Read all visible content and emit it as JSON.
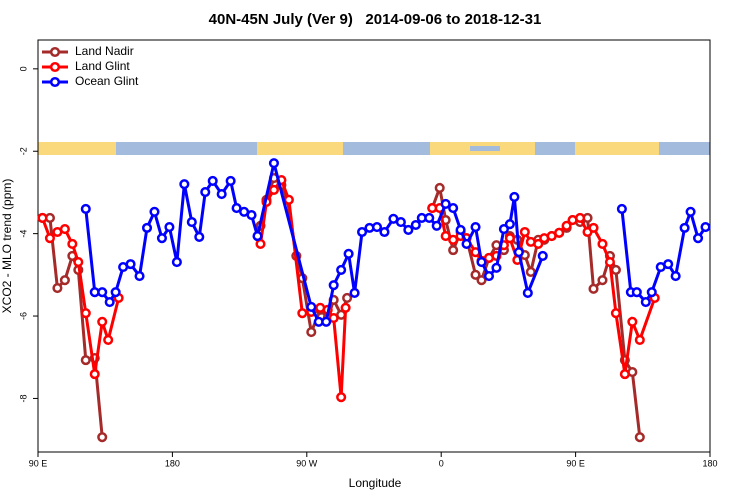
{
  "chart_data": {
    "type": "line",
    "title": "40N-45N July (Ver 9)   2014-09-06 to 2018-12-31",
    "x_label": "Longitude",
    "y_label": "XCO2 - MLO trend (ppm)",
    "xlim": [
      90,
      540
    ],
    "ylim": [
      -9.3,
      0.7
    ],
    "xticks": [
      {
        "value": 90,
        "label": "90 E"
      },
      180,
      {
        "value": 270,
        "label": "90 W"
      },
      {
        "value": 360,
        "label": "0"
      },
      {
        "value": 450,
        "label": "90 E"
      },
      {
        "value": 540,
        "label": "180"
      }
    ],
    "yticks": [
      0,
      -2,
      -4,
      -6,
      -8
    ],
    "legend": "top-left",
    "series": [
      {
        "name": "Land Nadir",
        "color": "#a52a2a",
        "x": [
          93,
          98,
          103,
          108,
          113,
          117,
          122,
          128,
          133,
          null,
          239,
          243,
          248,
          253,
          257,
          263,
          267,
          273,
          279,
          284,
          288,
          293,
          297,
          null,
          354,
          359,
          363,
          368,
          373,
          377,
          383,
          387,
          392,
          397,
          402,
          406,
          411,
          416,
          420,
          425,
          429,
          434,
          439,
          444,
          448,
          453,
          458,
          462,
          468,
          473,
          477,
          483,
          488,
          493
        ],
        "values": [
          -3.62,
          -3.62,
          -5.32,
          -5.13,
          -4.54,
          -4.88,
          -7.07,
          -7.02,
          -8.94,
          null,
          -3.81,
          -3.18,
          -2.65,
          -2.82,
          -3.18,
          -4.54,
          -5.08,
          -6.39,
          -5.85,
          -6.05,
          -5.61,
          -5.97,
          -5.56,
          null,
          -3.38,
          -2.89,
          -3.67,
          -4.4,
          -3.96,
          -4.11,
          -5.0,
          -5.13,
          -4.59,
          -4.28,
          -4.4,
          -4.06,
          -4.15,
          -4.52,
          -4.93,
          -4.15,
          -4.15,
          -4.06,
          -3.98,
          -3.86,
          -3.67,
          -3.72,
          -3.62,
          -5.34,
          -5.13,
          -4.54,
          -4.88,
          -7.07,
          -7.36,
          -8.94
        ]
      },
      {
        "name": "Land Glint",
        "color": "#ff0000",
        "x": [
          93,
          98,
          103,
          108,
          113,
          117,
          122,
          128,
          133,
          137,
          144,
          null,
          239,
          243,
          248,
          253,
          258,
          267,
          273,
          279,
          284,
          288,
          293,
          296,
          null,
          354,
          359,
          363,
          368,
          373,
          377,
          383,
          387,
          392,
          397,
          402,
          406,
          411,
          416,
          420,
          425,
          429,
          434,
          439,
          444,
          448,
          453,
          458,
          462,
          468,
          473,
          477,
          483,
          488,
          493,
          503
        ],
        "values": [
          -3.62,
          -4.11,
          -3.96,
          -3.89,
          -4.25,
          -4.69,
          -5.93,
          -7.41,
          -6.14,
          -6.58,
          -5.56,
          null,
          -4.25,
          -3.23,
          -2.94,
          -2.7,
          -3.18,
          -5.93,
          -5.9,
          -5.8,
          -5.85,
          -6.05,
          -7.97,
          -5.8,
          null,
          -3.38,
          -3.38,
          -4.06,
          -4.15,
          -4.06,
          -4.11,
          -4.45,
          -4.66,
          -4.59,
          -4.54,
          -4.28,
          -4.11,
          -4.64,
          -3.96,
          -4.2,
          -4.25,
          -4.11,
          -4.06,
          -3.98,
          -3.81,
          -3.67,
          -3.62,
          -3.96,
          -3.86,
          -4.25,
          -4.69,
          -5.93,
          -7.41,
          -6.14,
          -6.58,
          -5.56
        ]
      },
      {
        "name": "Ocean Glint",
        "color": "#0000ff",
        "x": [
          122,
          128,
          133,
          138,
          142,
          147,
          152,
          158,
          163,
          168,
          173,
          178,
          183,
          188,
          193,
          198,
          202,
          207,
          213,
          219,
          223,
          228,
          233,
          237,
          248,
          273,
          278,
          283,
          288,
          293,
          298,
          302,
          307,
          312,
          317,
          322,
          328,
          333,
          338,
          343,
          347,
          352,
          357,
          363,
          368,
          373,
          377,
          383,
          387,
          392,
          397,
          402,
          406,
          409,
          412,
          418,
          428,
          null,
          481,
          487,
          491,
          497,
          501,
          507,
          512,
          517,
          523,
          527,
          532,
          537
        ],
        "values": [
          -3.4,
          -5.42,
          -5.42,
          -5.66,
          -5.42,
          -4.81,
          -4.74,
          -5.03,
          -3.86,
          -3.47,
          -4.11,
          -3.84,
          -4.69,
          -2.8,
          -3.72,
          -4.08,
          -2.99,
          -2.72,
          -3.04,
          -2.72,
          -3.38,
          -3.47,
          -3.55,
          -4.06,
          -2.29,
          -5.78,
          -6.14,
          -6.14,
          -5.25,
          -4.88,
          -4.49,
          -5.44,
          -3.96,
          -3.86,
          -3.84,
          -3.96,
          -3.64,
          -3.72,
          -3.91,
          -3.79,
          -3.62,
          -3.62,
          -3.81,
          -3.28,
          -3.38,
          -3.91,
          -4.25,
          -3.84,
          -4.69,
          -5.03,
          -4.83,
          -3.89,
          -3.77,
          -3.11,
          -4.45,
          -5.44,
          -4.54,
          null,
          -3.4,
          -5.42,
          -5.42,
          -5.66,
          -5.42,
          -4.81,
          -4.74,
          -5.03,
          -3.86,
          -3.47,
          -4.11,
          -3.84
        ]
      }
    ]
  }
}
